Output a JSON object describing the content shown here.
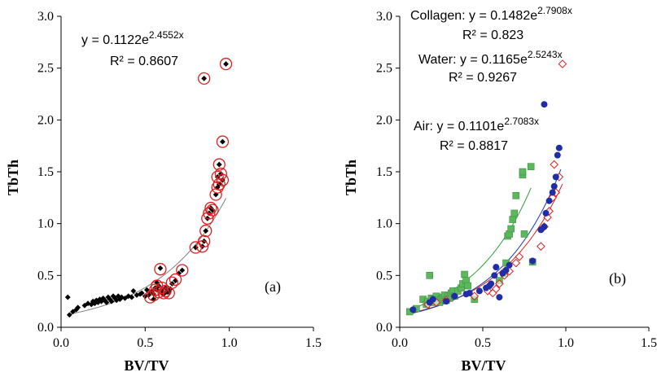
{
  "chart_data": [
    {
      "type": "scatter",
      "panel_label": "(a)",
      "xlabel": "BV/TV",
      "ylabel": "TbTh",
      "xlim": [
        0,
        1.5
      ],
      "ylim": [
        0,
        3.0
      ],
      "xticks": [
        "0.0",
        "0.5",
        "1.0",
        "1.5"
      ],
      "yticks": [
        "0.0",
        "0.5",
        "1.0",
        "1.5",
        "2.0",
        "2.5",
        "3.0"
      ],
      "grid": false,
      "annotations": {
        "equation": {
          "pre": "y = 0.1122e",
          "exp": "2.4552x"
        },
        "r2": "R² = 0.8607"
      },
      "colors": {
        "points": "#000000",
        "highlight": "#e02020",
        "trend": "#808080"
      },
      "trendline": {
        "a": 0.1122,
        "b": 2.4552,
        "x_range": [
          0.05,
          0.98
        ]
      },
      "series": [
        {
          "marker": "diamond",
          "points": [
            [
              0.04,
              0.29
            ],
            [
              0.05,
              0.12
            ],
            [
              0.07,
              0.15
            ],
            [
              0.09,
              0.17
            ],
            [
              0.1,
              0.19
            ],
            [
              0.14,
              0.21
            ],
            [
              0.16,
              0.23
            ],
            [
              0.18,
              0.22
            ],
            [
              0.19,
              0.25
            ],
            [
              0.2,
              0.23
            ],
            [
              0.21,
              0.26
            ],
            [
              0.22,
              0.24
            ],
            [
              0.23,
              0.27
            ],
            [
              0.24,
              0.25
            ],
            [
              0.25,
              0.28
            ],
            [
              0.26,
              0.26
            ],
            [
              0.27,
              0.24
            ],
            [
              0.28,
              0.29
            ],
            [
              0.29,
              0.27
            ],
            [
              0.3,
              0.25
            ],
            [
              0.31,
              0.3
            ],
            [
              0.32,
              0.28
            ],
            [
              0.33,
              0.26
            ],
            [
              0.34,
              0.3
            ],
            [
              0.35,
              0.27
            ],
            [
              0.36,
              0.29
            ],
            [
              0.38,
              0.28
            ],
            [
              0.4,
              0.3
            ],
            [
              0.42,
              0.29
            ],
            [
              0.43,
              0.35
            ],
            [
              0.45,
              0.31
            ],
            [
              0.47,
              0.32
            ],
            [
              0.48,
              0.33
            ],
            [
              0.5,
              0.3
            ],
            [
              0.51,
              0.36
            ],
            [
              0.52,
              0.31
            ],
            [
              0.53,
              0.33
            ],
            [
              0.54,
              0.35
            ],
            [
              0.55,
              0.32
            ],
            [
              0.56,
              0.38
            ],
            [
              0.57,
              0.36
            ],
            [
              0.58,
              0.4
            ],
            [
              0.6,
              0.35
            ],
            [
              0.62,
              0.38
            ],
            [
              0.63,
              0.34
            ],
            [
              0.65,
              0.37
            ],
            [
              0.66,
              0.42
            ],
            [
              0.68,
              0.45
            ],
            [
              0.7,
              0.52
            ],
            [
              0.72,
              0.55
            ],
            [
              0.55,
              0.27
            ],
            [
              0.57,
              0.43
            ],
            [
              0.59,
              0.57
            ],
            [
              0.61,
              0.32
            ],
            [
              0.64,
              0.34
            ],
            [
              0.8,
              0.77
            ],
            [
              0.84,
              0.78
            ],
            [
              0.85,
              0.83
            ],
            [
              0.86,
              0.93
            ],
            [
              0.87,
              1.05
            ],
            [
              0.88,
              1.1
            ],
            [
              0.89,
              1.15
            ],
            [
              0.9,
              1.13
            ],
            [
              0.92,
              1.28
            ],
            [
              0.93,
              1.35
            ],
            [
              0.93,
              1.45
            ],
            [
              0.94,
              1.57
            ],
            [
              0.95,
              1.48
            ],
            [
              0.96,
              1.42
            ],
            [
              0.94,
              1.38
            ],
            [
              0.96,
              1.79
            ],
            [
              0.85,
              2.4
            ],
            [
              0.98,
              2.54
            ]
          ]
        },
        {
          "marker": "circle-open",
          "points": [
            [
              0.53,
              0.29
            ],
            [
              0.55,
              0.31
            ],
            [
              0.56,
              0.36
            ],
            [
              0.57,
              0.4
            ],
            [
              0.58,
              0.34
            ],
            [
              0.59,
              0.56
            ],
            [
              0.6,
              0.38
            ],
            [
              0.61,
              0.33
            ],
            [
              0.62,
              0.35
            ],
            [
              0.64,
              0.33
            ],
            [
              0.66,
              0.43
            ],
            [
              0.68,
              0.46
            ],
            [
              0.72,
              0.55
            ],
            [
              0.8,
              0.77
            ],
            [
              0.84,
              0.78
            ],
            [
              0.85,
              0.83
            ],
            [
              0.86,
              0.93
            ],
            [
              0.87,
              1.05
            ],
            [
              0.88,
              1.1
            ],
            [
              0.89,
              1.15
            ],
            [
              0.9,
              1.13
            ],
            [
              0.92,
              1.28
            ],
            [
              0.93,
              1.35
            ],
            [
              0.93,
              1.45
            ],
            [
              0.94,
              1.57
            ],
            [
              0.95,
              1.48
            ],
            [
              0.96,
              1.42
            ],
            [
              0.94,
              1.38
            ],
            [
              0.96,
              1.79
            ],
            [
              0.85,
              2.4
            ],
            [
              0.98,
              2.54
            ]
          ]
        }
      ]
    },
    {
      "type": "scatter",
      "panel_label": "(b)",
      "xlabel": "BV/TV",
      "ylabel": "TbTh",
      "xlim": [
        0,
        1.5
      ],
      "ylim": [
        0,
        3.0
      ],
      "xticks": [
        "0.0",
        "0.5",
        "1.0",
        "1.5"
      ],
      "yticks": [
        "0.0",
        "0.5",
        "1.0",
        "1.5",
        "2.0",
        "2.5",
        "3.0"
      ],
      "grid": false,
      "annotations": [
        {
          "pre": "Collagen: y = 0.1482e",
          "exp": "2.7908x",
          "r2": "R² = 0.823"
        },
        {
          "pre": "Water: y = 0.1165e",
          "exp": "2.5243x",
          "r2": "R² = 0.9267"
        },
        {
          "pre": "Air: y = 0.1101e",
          "exp": "2.7083x",
          "r2": "R² = 0.8817"
        }
      ],
      "series": [
        {
          "name": "Collagen",
          "marker": "square",
          "color": "#5cb85c",
          "trendline": {
            "a": 0.1482,
            "b": 2.7908,
            "x_range": [
              0.05,
              0.79
            ],
            "color": "#2e9e3a"
          },
          "points": [
            [
              0.06,
              0.15
            ],
            [
              0.1,
              0.18
            ],
            [
              0.14,
              0.27
            ],
            [
              0.16,
              0.22
            ],
            [
              0.17,
              0.25
            ],
            [
              0.18,
              0.5
            ],
            [
              0.19,
              0.28
            ],
            [
              0.2,
              0.24
            ],
            [
              0.21,
              0.27
            ],
            [
              0.22,
              0.3
            ],
            [
              0.23,
              0.26
            ],
            [
              0.24,
              0.24
            ],
            [
              0.25,
              0.27
            ],
            [
              0.26,
              0.29
            ],
            [
              0.27,
              0.31
            ],
            [
              0.28,
              0.26
            ],
            [
              0.29,
              0.3
            ],
            [
              0.3,
              0.28
            ],
            [
              0.31,
              0.33
            ],
            [
              0.32,
              0.35
            ],
            [
              0.33,
              0.3
            ],
            [
              0.35,
              0.35
            ],
            [
              0.37,
              0.38
            ],
            [
              0.38,
              0.42
            ],
            [
              0.39,
              0.51
            ],
            [
              0.4,
              0.45
            ],
            [
              0.41,
              0.4
            ],
            [
              0.45,
              0.27
            ],
            [
              0.6,
              0.45
            ],
            [
              0.63,
              0.52
            ],
            [
              0.64,
              0.62
            ],
            [
              0.65,
              0.88
            ],
            [
              0.66,
              0.9
            ],
            [
              0.67,
              0.95
            ],
            [
              0.68,
              1.04
            ],
            [
              0.69,
              1.1
            ],
            [
              0.7,
              1.27
            ],
            [
              0.74,
              1.47
            ],
            [
              0.74,
              1.5
            ],
            [
              0.75,
              0.9
            ],
            [
              0.79,
              1.55
            ],
            [
              0.8,
              0.63
            ]
          ]
        },
        {
          "name": "Water",
          "marker": "diamond-open",
          "color": "#e02020",
          "trendline": {
            "a": 0.1165,
            "b": 2.5243,
            "x_range": [
              0.08,
              0.98
            ],
            "color": "#d42020"
          },
          "points": [
            [
              0.17,
              0.22
            ],
            [
              0.22,
              0.24
            ],
            [
              0.28,
              0.26
            ],
            [
              0.45,
              0.3
            ],
            [
              0.53,
              0.35
            ],
            [
              0.56,
              0.33
            ],
            [
              0.58,
              0.37
            ],
            [
              0.6,
              0.42
            ],
            [
              0.63,
              0.5
            ],
            [
              0.66,
              0.54
            ],
            [
              0.7,
              0.62
            ],
            [
              0.72,
              0.68
            ],
            [
              0.85,
              0.78
            ],
            [
              0.87,
              0.97
            ],
            [
              0.89,
              1.06
            ],
            [
              0.9,
              1.12
            ],
            [
              0.92,
              1.25
            ],
            [
              0.94,
              1.3
            ],
            [
              0.93,
              1.57
            ],
            [
              0.96,
              1.45
            ],
            [
              0.98,
              2.54
            ]
          ]
        },
        {
          "name": "Air",
          "marker": "circle",
          "color": "#1f2ea6",
          "trendline": {
            "a": 0.1101,
            "b": 2.7083,
            "x_range": [
              0.05,
              0.97
            ],
            "color": "#1a3ab0"
          },
          "points": [
            [
              0.08,
              0.17
            ],
            [
              0.18,
              0.24
            ],
            [
              0.2,
              0.27
            ],
            [
              0.28,
              0.25
            ],
            [
              0.33,
              0.3
            ],
            [
              0.4,
              0.32
            ],
            [
              0.42,
              0.33
            ],
            [
              0.48,
              0.35
            ],
            [
              0.52,
              0.38
            ],
            [
              0.54,
              0.4
            ],
            [
              0.55,
              0.42
            ],
            [
              0.57,
              0.5
            ],
            [
              0.58,
              0.58
            ],
            [
              0.6,
              0.29
            ],
            [
              0.62,
              0.52
            ],
            [
              0.64,
              0.55
            ],
            [
              0.66,
              0.6
            ],
            [
              0.8,
              0.64
            ],
            [
              0.85,
              0.94
            ],
            [
              0.87,
              0.97
            ],
            [
              0.88,
              1.1
            ],
            [
              0.9,
              1.22
            ],
            [
              0.92,
              1.3
            ],
            [
              0.93,
              1.36
            ],
            [
              0.94,
              1.45
            ],
            [
              0.95,
              1.66
            ],
            [
              0.96,
              1.73
            ],
            [
              0.87,
              2.15
            ]
          ]
        }
      ]
    }
  ]
}
